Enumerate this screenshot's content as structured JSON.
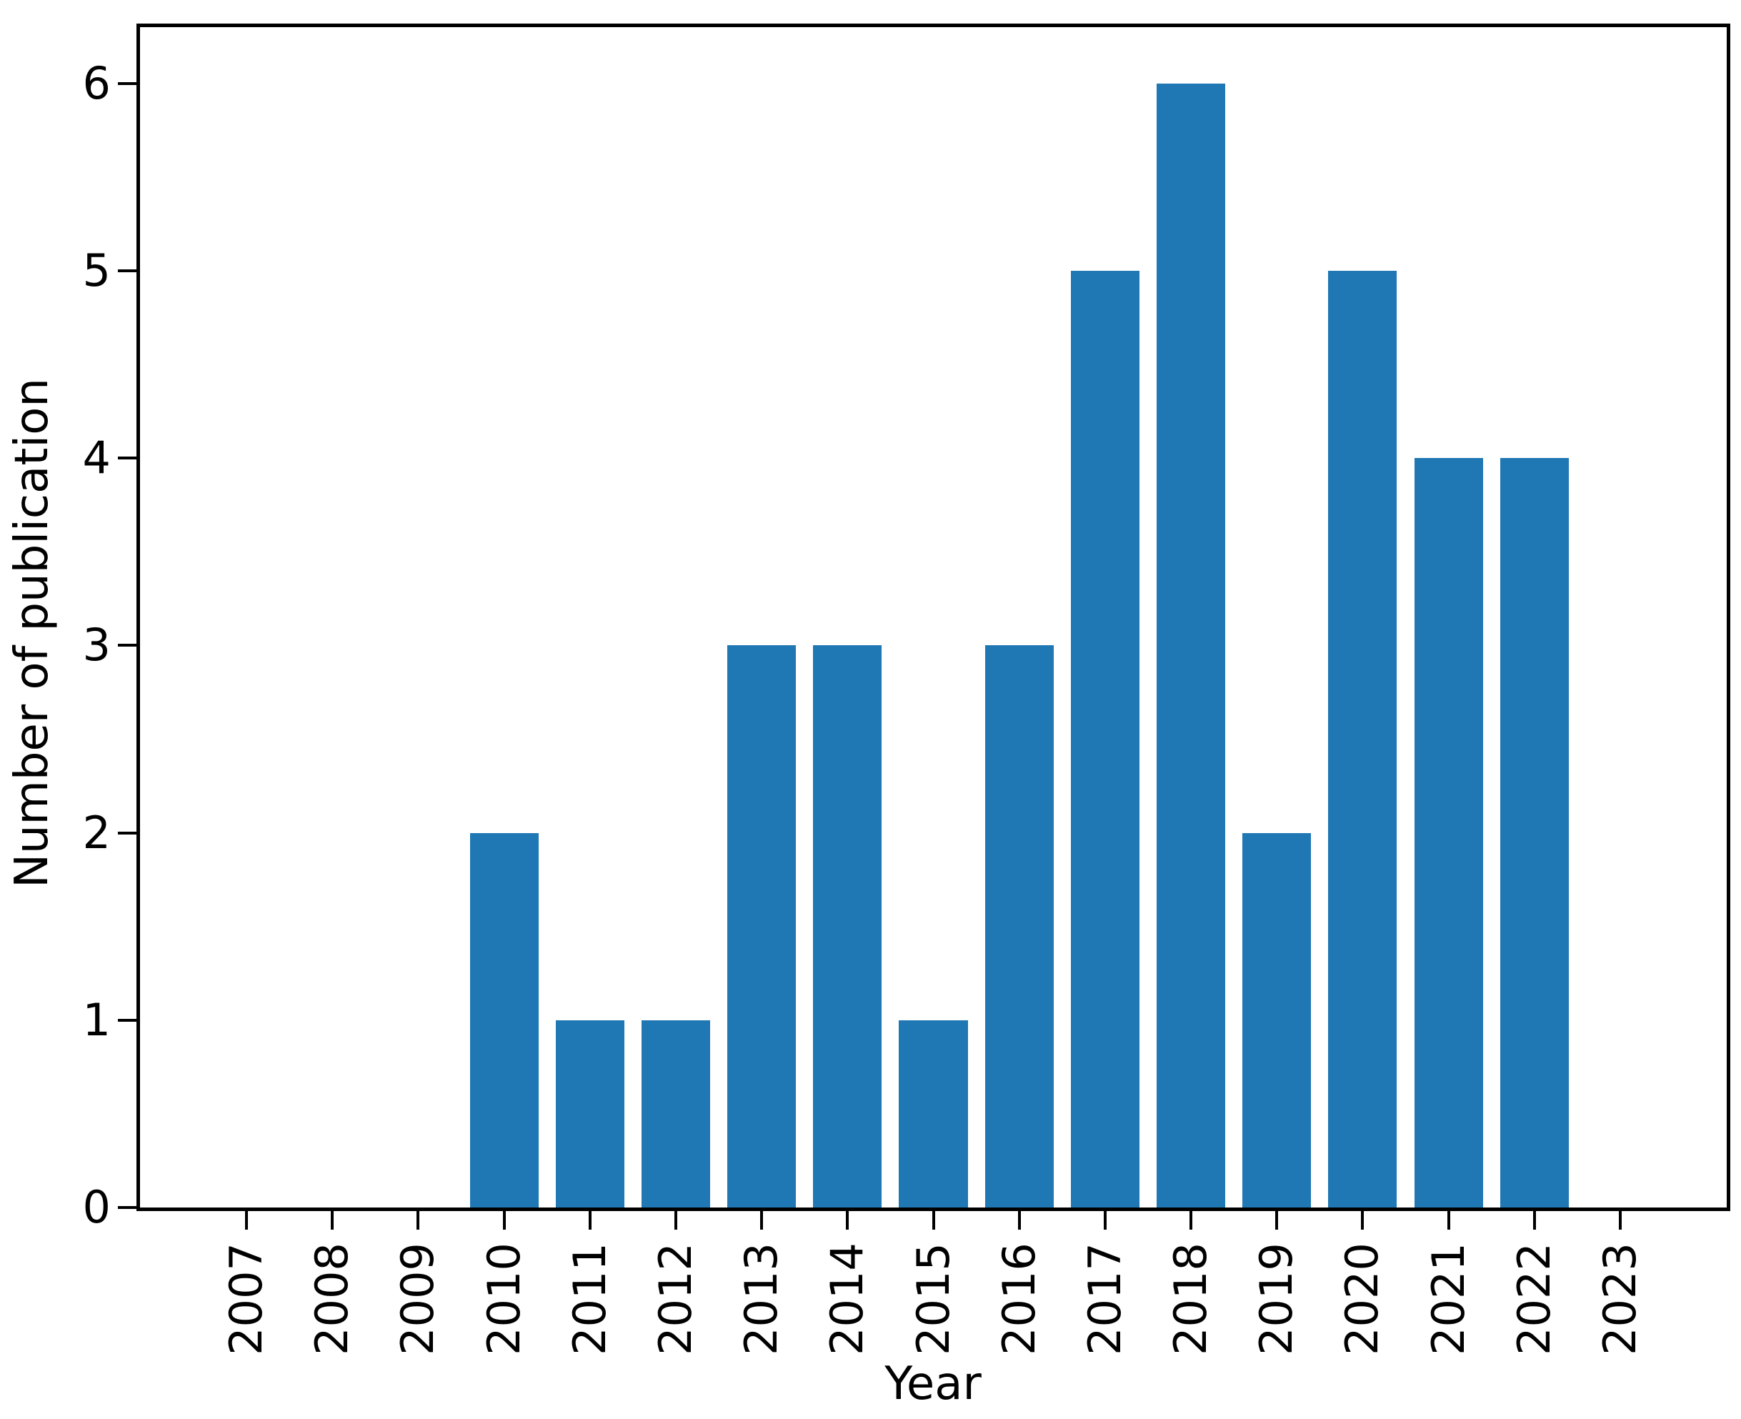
{
  "chart_data": {
    "type": "bar",
    "title": "",
    "xlabel": "Year",
    "ylabel": "Number of publication",
    "categories": [
      "2007",
      "2008",
      "2009",
      "2010",
      "2011",
      "2012",
      "2013",
      "2014",
      "2015",
      "2016",
      "2017",
      "2018",
      "2019",
      "2020",
      "2021",
      "2022",
      "2023"
    ],
    "values": [
      0,
      0,
      0,
      2,
      1,
      1,
      3,
      3,
      1,
      3,
      5,
      6,
      2,
      5,
      4,
      4,
      0
    ],
    "yticks": [
      0,
      1,
      2,
      3,
      4,
      5,
      6
    ],
    "ylim": [
      0,
      6.3
    ],
    "xlim": [
      -1.24,
      17.24
    ],
    "bar_width_fraction": 0.8,
    "bar_color": "#1f77b4",
    "axis_color": "#000000",
    "grid": false,
    "legend": null,
    "x_tick_rotation_deg": 90
  }
}
